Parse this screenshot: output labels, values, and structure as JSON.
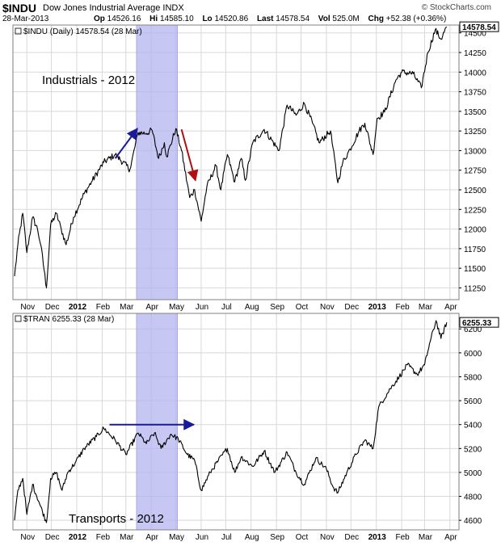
{
  "header": {
    "ticker": "$INDU",
    "name": "Dow Jones Industrial Average INDX",
    "date": "28-Mar-2013",
    "logo": "© StockCharts.com",
    "quote": [
      {
        "label": "Op",
        "value": "14526.16"
      },
      {
        "label": "Hi",
        "value": "14585.10"
      },
      {
        "label": "Lo",
        "value": "14520.86"
      },
      {
        "label": "Last",
        "value": "14578.54"
      },
      {
        "label": "Vol",
        "value": "525.0M"
      },
      {
        "label": "Chg",
        "value": "+52.38 (+0.36%)"
      }
    ]
  },
  "chart_data": [
    {
      "type": "line",
      "title": "$INDU (Daily) 14578.54 (28 Mar)",
      "annotation": "Industrials - 2012",
      "last_value": "14578.54",
      "x_tick_labels": [
        "Nov",
        "Dec",
        "2012",
        "Feb",
        "Mar",
        "Apr",
        "May",
        "Jun",
        "Jul",
        "Aug",
        "Sep",
        "Oct",
        "Nov",
        "Dec",
        "2013",
        "Feb",
        "Mar",
        "Apr"
      ],
      "bold_ticks": [
        "2012",
        "2013"
      ],
      "y_ticks": [
        11250,
        11500,
        11750,
        12000,
        12250,
        12500,
        12750,
        13000,
        13250,
        13500,
        13750,
        14000,
        14250,
        14500
      ],
      "y_tick_labels": [
        "11250",
        "11500",
        "11750",
        "12000",
        "12250",
        "12500",
        "12750",
        "13000",
        "13250",
        "13500",
        "13750",
        "14000",
        "14250",
        "14500"
      ],
      "ylim": [
        11100,
        14600
      ],
      "x_range": [
        "2011-10-15",
        "2013-04-12"
      ],
      "keypoints": [
        [
          "2011-10-17",
          11400
        ],
        [
          "2011-10-21",
          11800
        ],
        [
          "2011-10-27",
          12200
        ],
        [
          "2011-11-01",
          11700
        ],
        [
          "2011-11-08",
          12150
        ],
        [
          "2011-11-14",
          12000
        ],
        [
          "2011-11-18",
          11800
        ],
        [
          "2011-11-25",
          11250
        ],
        [
          "2011-11-30",
          12050
        ],
        [
          "2011-12-07",
          12200
        ],
        [
          "2011-12-13",
          12000
        ],
        [
          "2011-12-19",
          11800
        ],
        [
          "2011-12-28",
          12150
        ],
        [
          "2012-01-10",
          12450
        ],
        [
          "2012-01-19",
          12600
        ],
        [
          "2012-02-03",
          12850
        ],
        [
          "2012-02-17",
          12950
        ],
        [
          "2012-03-06",
          12760
        ],
        [
          "2012-03-16",
          13230
        ],
        [
          "2012-03-26",
          13220
        ],
        [
          "2012-04-02",
          13260
        ],
        [
          "2012-04-10",
          12900
        ],
        [
          "2012-04-17",
          13100
        ],
        [
          "2012-04-20",
          12920
        ],
        [
          "2012-05-01",
          13280
        ],
        [
          "2012-05-08",
          13000
        ],
        [
          "2012-05-18",
          12400
        ],
        [
          "2012-05-24",
          12500
        ],
        [
          "2012-06-01",
          12100
        ],
        [
          "2012-06-08",
          12540
        ],
        [
          "2012-06-19",
          12810
        ],
        [
          "2012-06-25",
          12500
        ],
        [
          "2012-07-03",
          12950
        ],
        [
          "2012-07-12",
          12600
        ],
        [
          "2012-07-20",
          12900
        ],
        [
          "2012-07-25",
          12620
        ],
        [
          "2012-08-03",
          13100
        ],
        [
          "2012-08-17",
          13270
        ],
        [
          "2012-09-04",
          13000
        ],
        [
          "2012-09-14",
          13580
        ],
        [
          "2012-09-25",
          13450
        ],
        [
          "2012-10-05",
          13600
        ],
        [
          "2012-10-15",
          13350
        ],
        [
          "2012-10-23",
          13100
        ],
        [
          "2012-11-06",
          13250
        ],
        [
          "2012-11-15",
          12590
        ],
        [
          "2012-11-21",
          12850
        ],
        [
          "2012-11-30",
          13020
        ],
        [
          "2012-12-11",
          13250
        ],
        [
          "2012-12-18",
          13350
        ],
        [
          "2012-12-28",
          12950
        ],
        [
          "2013-01-02",
          13410
        ],
        [
          "2013-01-11",
          13490
        ],
        [
          "2013-01-25",
          13900
        ],
        [
          "2013-02-01",
          14000
        ],
        [
          "2013-02-15",
          13980
        ],
        [
          "2013-02-25",
          13800
        ],
        [
          "2013-03-05",
          14250
        ],
        [
          "2013-03-14",
          14540
        ],
        [
          "2013-03-21",
          14420
        ],
        [
          "2013-03-28",
          14578
        ]
      ]
    },
    {
      "type": "line",
      "title": "$TRAN 6255.33 (28 Mar)",
      "annotation": "Transports - 2012",
      "last_value": "6255.33",
      "x_tick_labels": [
        "Nov",
        "Dec",
        "2012",
        "Feb",
        "Mar",
        "Apr",
        "May",
        "Jun",
        "Jul",
        "Aug",
        "Sep",
        "Oct",
        "Nov",
        "Dec",
        "2013",
        "Feb",
        "Mar",
        "Apr"
      ],
      "bold_ticks": [
        "2012",
        "2013"
      ],
      "y_ticks": [
        4600,
        4800,
        5000,
        5200,
        5400,
        5600,
        5800,
        6000,
        6200
      ],
      "y_tick_labels": [
        "4600",
        "4800",
        "5000",
        "5200",
        "5400",
        "5600",
        "5800",
        "6000",
        "6200"
      ],
      "ylim": [
        4520,
        6330
      ],
      "x_range": [
        "2011-10-15",
        "2013-04-12"
      ],
      "keypoints": [
        [
          "2011-10-17",
          4600
        ],
        [
          "2011-10-21",
          4850
        ],
        [
          "2011-10-27",
          4950
        ],
        [
          "2011-11-01",
          4650
        ],
        [
          "2011-11-08",
          4900
        ],
        [
          "2011-11-16",
          4750
        ],
        [
          "2011-11-25",
          4580
        ],
        [
          "2011-11-30",
          4950
        ],
        [
          "2011-12-07",
          5000
        ],
        [
          "2011-12-14",
          4850
        ],
        [
          "2011-12-21",
          5000
        ],
        [
          "2011-12-30",
          5080
        ],
        [
          "2012-01-10",
          5200
        ],
        [
          "2012-01-25",
          5300
        ],
        [
          "2012-02-03",
          5370
        ],
        [
          "2012-02-17",
          5270
        ],
        [
          "2012-03-01",
          5150
        ],
        [
          "2012-03-16",
          5330
        ],
        [
          "2012-03-26",
          5240
        ],
        [
          "2012-04-05",
          5330
        ],
        [
          "2012-04-13",
          5200
        ],
        [
          "2012-04-25",
          5320
        ],
        [
          "2012-05-04",
          5280
        ],
        [
          "2012-05-15",
          5150
        ],
        [
          "2012-05-24",
          5100
        ],
        [
          "2012-06-01",
          4850
        ],
        [
          "2012-06-12",
          5000
        ],
        [
          "2012-06-22",
          5100
        ],
        [
          "2012-07-03",
          5200
        ],
        [
          "2012-07-12",
          5000
        ],
        [
          "2012-07-20",
          5130
        ],
        [
          "2012-08-03",
          5050
        ],
        [
          "2012-08-17",
          5180
        ],
        [
          "2012-08-30",
          5000
        ],
        [
          "2012-09-14",
          5170
        ],
        [
          "2012-09-25",
          5000
        ],
        [
          "2012-10-05",
          4900
        ],
        [
          "2012-10-19",
          5120
        ],
        [
          "2012-11-01",
          5030
        ],
        [
          "2012-11-09",
          4880
        ],
        [
          "2012-11-15",
          4830
        ],
        [
          "2012-11-26",
          5000
        ],
        [
          "2012-12-07",
          5150
        ],
        [
          "2012-12-18",
          5270
        ],
        [
          "2012-12-28",
          5200
        ],
        [
          "2013-01-04",
          5550
        ],
        [
          "2013-01-18",
          5700
        ],
        [
          "2013-01-29",
          5800
        ],
        [
          "2013-02-08",
          5900
        ],
        [
          "2013-02-20",
          5820
        ],
        [
          "2013-03-01",
          5900
        ],
        [
          "2013-03-08",
          6100
        ],
        [
          "2013-03-15",
          6270
        ],
        [
          "2013-03-21",
          6120
        ],
        [
          "2013-03-28",
          6255
        ]
      ]
    }
  ],
  "highlight_band": {
    "start": "2012-03-14",
    "end": "2012-05-03",
    "color": "#b4b4f0"
  },
  "arrows": {
    "top_blue": {
      "x1": "2012-02-17",
      "y1": 12900,
      "x2": "2012-03-15",
      "y2": 13280,
      "color": "#1a1a9c"
    },
    "top_red": {
      "x1": "2012-05-08",
      "y1": 13270,
      "x2": "2012-05-25",
      "y2": 12620,
      "color": "#b01010"
    },
    "bottom_blue": {
      "x1": "2012-02-10",
      "y1": 5400,
      "x2": "2012-05-23",
      "y2": 5400,
      "color": "#1a1a9c"
    }
  },
  "colors": {
    "line": "#000000",
    "grid": "#d8d8d8",
    "frame": "#808080",
    "lastbox": "#000000"
  }
}
